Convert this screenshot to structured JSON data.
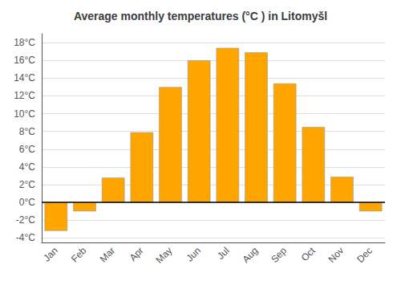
{
  "chart_data": {
    "type": "bar",
    "title": "Average monthly temperatures (°C ) in Litomyšl",
    "categories": [
      "Jan",
      "Feb",
      "Mar",
      "Apr",
      "May",
      "Jun",
      "Jul",
      "Aug",
      "Sep",
      "Oct",
      "Nov",
      "Dec"
    ],
    "values": [
      -3.2,
      -1.0,
      2.8,
      7.9,
      13.0,
      16.0,
      17.4,
      16.9,
      13.4,
      8.5,
      2.9,
      -1.0
    ],
    "color": "#FFA500",
    "ylim": [
      -4.5,
      19
    ],
    "yticks": [
      {
        "value": -4,
        "label": "-4°C"
      },
      {
        "value": -2,
        "label": "-2°C"
      },
      {
        "value": 0,
        "label": "0°C"
      },
      {
        "value": 2,
        "label": "2°C"
      },
      {
        "value": 4,
        "label": "4°C"
      },
      {
        "value": 6,
        "label": "6°C"
      },
      {
        "value": 8,
        "label": "8°C"
      },
      {
        "value": 10,
        "label": "10°C"
      },
      {
        "value": 12,
        "label": "12°C"
      },
      {
        "value": 14,
        "label": "14°C"
      },
      {
        "value": 16,
        "label": "16°C"
      },
      {
        "value": 18,
        "label": "18°C"
      }
    ],
    "grid": true
  }
}
